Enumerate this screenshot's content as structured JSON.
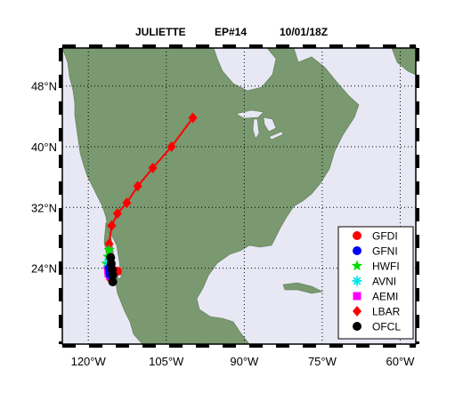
{
  "title": {
    "storm": "JULIETTE",
    "id": "EP#14",
    "datetime": "10/01/18Z"
  },
  "colors": {
    "ocean": "#e8e8f4",
    "land": "#7a9970",
    "GFDI": "#ff0000",
    "GFNI": "#0000ff",
    "HWFI": "#00dd00",
    "AVNI": "#00e5e5",
    "AEMI": "#ff00ff",
    "LBAR": "#ff0000",
    "OFCL": "#000000"
  },
  "map": {
    "lon_range": [
      -125,
      -57
    ],
    "lat_range": [
      14,
      53
    ],
    "lon_ticks": [
      {
        "value": -120,
        "label": "120°W"
      },
      {
        "value": -105,
        "label": "105°W"
      },
      {
        "value": -90,
        "label": "90°W"
      },
      {
        "value": -75,
        "label": "75°W"
      },
      {
        "value": -60,
        "label": "60°W"
      }
    ],
    "lat_ticks": [
      {
        "value": 24,
        "label": "24°N"
      },
      {
        "value": 32,
        "label": "32°N"
      },
      {
        "value": 40,
        "label": "40°N"
      },
      {
        "value": 48,
        "label": "48°N"
      }
    ]
  },
  "legend": {
    "entries": [
      {
        "name": "GFDI",
        "marker": "circle",
        "color": "#ff0000"
      },
      {
        "name": "GFNI",
        "marker": "circle",
        "color": "#0000ff"
      },
      {
        "name": "HWFI",
        "marker": "star",
        "color": "#00dd00"
      },
      {
        "name": "AVNI",
        "marker": "asterisk",
        "color": "#00e5e5"
      },
      {
        "name": "AEMI",
        "marker": "square",
        "color": "#ff00ff"
      },
      {
        "name": "LBAR",
        "marker": "diamond",
        "color": "#ff0000"
      },
      {
        "name": "OFCL",
        "marker": "circle",
        "color": "#000000"
      }
    ]
  },
  "tracks": {
    "LBAR": [
      [
        -115.8,
        22.6
      ],
      [
        -115.8,
        23.8
      ],
      [
        -115.9,
        25.2
      ],
      [
        -116.0,
        27.2
      ],
      [
        -115.5,
        29.6
      ],
      [
        -114.4,
        31.2
      ],
      [
        -112.6,
        32.6
      ],
      [
        -110.5,
        34.8
      ],
      [
        -107.6,
        37.2
      ],
      [
        -104.0,
        40.0
      ],
      [
        -99.9,
        43.8
      ]
    ],
    "GFDI": [
      [
        -115.8,
        23.3
      ],
      [
        -115.5,
        23.4
      ],
      [
        -114.9,
        23.5
      ],
      [
        -114.4,
        23.6
      ]
    ],
    "HWFI": [
      [
        -115.8,
        23.2
      ],
      [
        -116.2,
        23.8
      ],
      [
        -116.5,
        24.6
      ],
      [
        -116.2,
        25.5
      ],
      [
        -116.0,
        26.4
      ]
    ],
    "AVNI": [
      [
        -115.8,
        23.2
      ],
      [
        -116.1,
        23.9
      ],
      [
        -116.2,
        24.8
      ]
    ],
    "AEMI": [
      [
        -115.8,
        23.0
      ],
      [
        -116.1,
        23.3
      ],
      [
        -116.2,
        23.7
      ]
    ],
    "GFNI": [
      [
        -115.8,
        23.1
      ],
      [
        -115.9,
        23.5
      ],
      [
        -116.0,
        24.0
      ]
    ],
    "OFCL": [
      [
        -115.7,
        25.4
      ],
      [
        -115.6,
        24.6
      ],
      [
        -115.4,
        23.8
      ],
      [
        -115.3,
        23.1
      ],
      [
        -115.3,
        22.2
      ]
    ]
  }
}
